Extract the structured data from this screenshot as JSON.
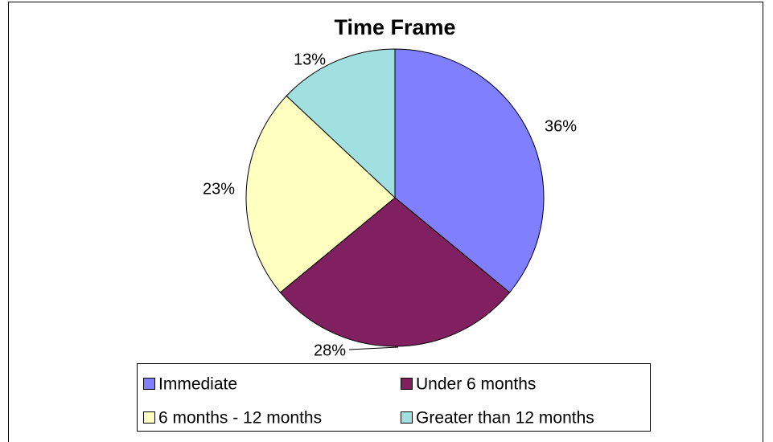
{
  "chart_data": {
    "type": "pie",
    "title": "Time Frame",
    "categories": [
      "Immediate",
      "Under 6 months",
      "6 months - 12 months",
      "Greater than 12 months"
    ],
    "values": [
      36,
      28,
      23,
      13
    ],
    "value_labels": [
      "36%",
      "28%",
      "23%",
      "13%"
    ],
    "colors": [
      "#8080ff",
      "#802060",
      "#ffffc0",
      "#a0e0e0"
    ]
  }
}
